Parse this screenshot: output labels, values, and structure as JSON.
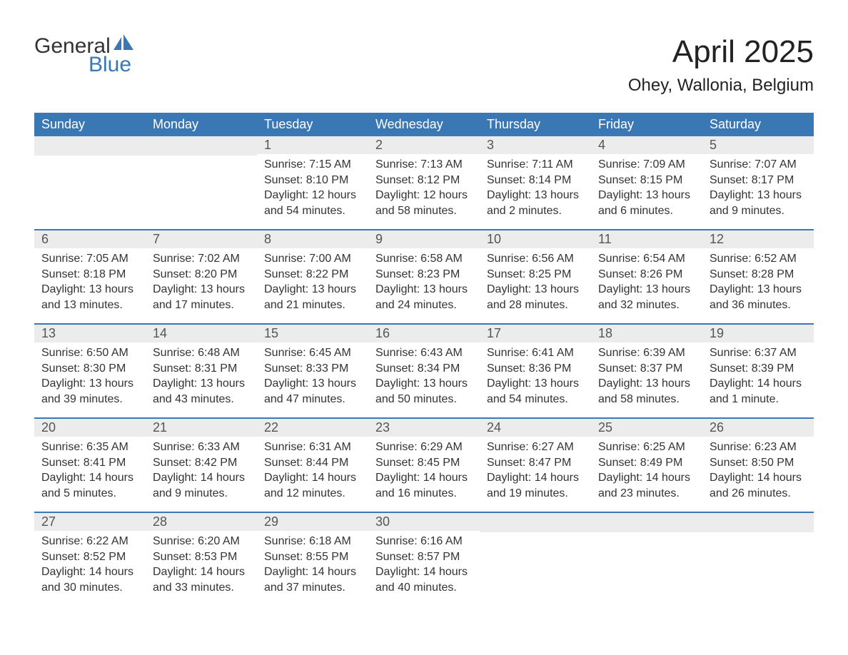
{
  "logo": {
    "word1": "General",
    "word2": "Blue"
  },
  "title": "April 2025",
  "subtitle": "Ohey, Wallonia, Belgium",
  "colors": {
    "header_bg": "#3a78b5",
    "row_border": "#3a78b5",
    "daynum_bg": "#ececec",
    "text": "#333333"
  },
  "daynames": [
    "Sunday",
    "Monday",
    "Tuesday",
    "Wednesday",
    "Thursday",
    "Friday",
    "Saturday"
  ],
  "calendar": {
    "type": "table",
    "columns": 7,
    "rows": 5,
    "first_day_column": 2,
    "days_in_month": 30
  },
  "days": {
    "1": {
      "sunrise": "7:15 AM",
      "sunset": "8:10 PM",
      "daylight": "12 hours and 54 minutes."
    },
    "2": {
      "sunrise": "7:13 AM",
      "sunset": "8:12 PM",
      "daylight": "12 hours and 58 minutes."
    },
    "3": {
      "sunrise": "7:11 AM",
      "sunset": "8:14 PM",
      "daylight": "13 hours and 2 minutes."
    },
    "4": {
      "sunrise": "7:09 AM",
      "sunset": "8:15 PM",
      "daylight": "13 hours and 6 minutes."
    },
    "5": {
      "sunrise": "7:07 AM",
      "sunset": "8:17 PM",
      "daylight": "13 hours and 9 minutes."
    },
    "6": {
      "sunrise": "7:05 AM",
      "sunset": "8:18 PM",
      "daylight": "13 hours and 13 minutes."
    },
    "7": {
      "sunrise": "7:02 AM",
      "sunset": "8:20 PM",
      "daylight": "13 hours and 17 minutes."
    },
    "8": {
      "sunrise": "7:00 AM",
      "sunset": "8:22 PM",
      "daylight": "13 hours and 21 minutes."
    },
    "9": {
      "sunrise": "6:58 AM",
      "sunset": "8:23 PM",
      "daylight": "13 hours and 24 minutes."
    },
    "10": {
      "sunrise": "6:56 AM",
      "sunset": "8:25 PM",
      "daylight": "13 hours and 28 minutes."
    },
    "11": {
      "sunrise": "6:54 AM",
      "sunset": "8:26 PM",
      "daylight": "13 hours and 32 minutes."
    },
    "12": {
      "sunrise": "6:52 AM",
      "sunset": "8:28 PM",
      "daylight": "13 hours and 36 minutes."
    },
    "13": {
      "sunrise": "6:50 AM",
      "sunset": "8:30 PM",
      "daylight": "13 hours and 39 minutes."
    },
    "14": {
      "sunrise": "6:48 AM",
      "sunset": "8:31 PM",
      "daylight": "13 hours and 43 minutes."
    },
    "15": {
      "sunrise": "6:45 AM",
      "sunset": "8:33 PM",
      "daylight": "13 hours and 47 minutes."
    },
    "16": {
      "sunrise": "6:43 AM",
      "sunset": "8:34 PM",
      "daylight": "13 hours and 50 minutes."
    },
    "17": {
      "sunrise": "6:41 AM",
      "sunset": "8:36 PM",
      "daylight": "13 hours and 54 minutes."
    },
    "18": {
      "sunrise": "6:39 AM",
      "sunset": "8:37 PM",
      "daylight": "13 hours and 58 minutes."
    },
    "19": {
      "sunrise": "6:37 AM",
      "sunset": "8:39 PM",
      "daylight": "14 hours and 1 minute."
    },
    "20": {
      "sunrise": "6:35 AM",
      "sunset": "8:41 PM",
      "daylight": "14 hours and 5 minutes."
    },
    "21": {
      "sunrise": "6:33 AM",
      "sunset": "8:42 PM",
      "daylight": "14 hours and 9 minutes."
    },
    "22": {
      "sunrise": "6:31 AM",
      "sunset": "8:44 PM",
      "daylight": "14 hours and 12 minutes."
    },
    "23": {
      "sunrise": "6:29 AM",
      "sunset": "8:45 PM",
      "daylight": "14 hours and 16 minutes."
    },
    "24": {
      "sunrise": "6:27 AM",
      "sunset": "8:47 PM",
      "daylight": "14 hours and 19 minutes."
    },
    "25": {
      "sunrise": "6:25 AM",
      "sunset": "8:49 PM",
      "daylight": "14 hours and 23 minutes."
    },
    "26": {
      "sunrise": "6:23 AM",
      "sunset": "8:50 PM",
      "daylight": "14 hours and 26 minutes."
    },
    "27": {
      "sunrise": "6:22 AM",
      "sunset": "8:52 PM",
      "daylight": "14 hours and 30 minutes."
    },
    "28": {
      "sunrise": "6:20 AM",
      "sunset": "8:53 PM",
      "daylight": "14 hours and 33 minutes."
    },
    "29": {
      "sunrise": "6:18 AM",
      "sunset": "8:55 PM",
      "daylight": "14 hours and 37 minutes."
    },
    "30": {
      "sunrise": "6:16 AM",
      "sunset": "8:57 PM",
      "daylight": "14 hours and 40 minutes."
    }
  },
  "labels": {
    "sunrise": "Sunrise: ",
    "sunset": "Sunset: ",
    "daylight": "Daylight: "
  }
}
